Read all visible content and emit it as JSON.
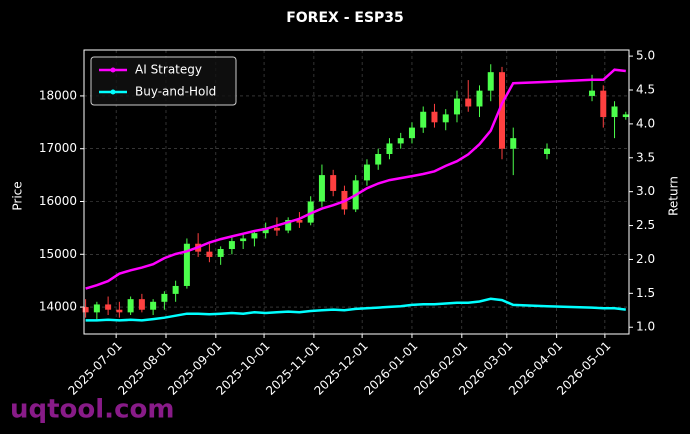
{
  "chart_data": {
    "type": "candlestick",
    "title": "FOREX - ESP35",
    "y_label": "Price",
    "y2_label": "Return",
    "watermark": "uqtool.com",
    "x": [
      "2025-06-12",
      "2025-06-19",
      "2025-06-26",
      "2025-07-03",
      "2025-07-10",
      "2025-07-17",
      "2025-07-24",
      "2025-07-31",
      "2025-08-07",
      "2025-08-14",
      "2025-08-21",
      "2025-08-28",
      "2025-09-04",
      "2025-09-11",
      "2025-09-18",
      "2025-09-25",
      "2025-10-02",
      "2025-10-09",
      "2025-10-16",
      "2025-10-23",
      "2025-10-30",
      "2025-11-06",
      "2025-11-13",
      "2025-11-20",
      "2025-11-27",
      "2025-12-04",
      "2025-12-11",
      "2025-12-18",
      "2025-12-25",
      "2026-01-01",
      "2026-01-08",
      "2026-01-15",
      "2026-01-22",
      "2026-01-29",
      "2026-02-05",
      "2026-02-12",
      "2026-02-19",
      "2026-02-26",
      "2026-03-05",
      "2026-03-26",
      "2026-04-23",
      "2026-04-30",
      "2026-05-07",
      "2026-05-14"
    ],
    "open": [
      14000,
      13900,
      14050,
      13950,
      13900,
      14150,
      13950,
      14100,
      14250,
      14400,
      15200,
      15050,
      14950,
      15100,
      15250,
      15300,
      15400,
      15500,
      15450,
      15650,
      15600,
      16000,
      16500,
      16200,
      15850,
      16400,
      16700,
      16900,
      17100,
      17200,
      17400,
      17700,
      17500,
      17650,
      17950,
      17800,
      18100,
      18450,
      17000,
      16900,
      18000,
      18100,
      17600,
      17600
    ],
    "high": [
      14150,
      14100,
      14200,
      14100,
      14200,
      14250,
      14150,
      14300,
      14500,
      15300,
      15400,
      15200,
      15150,
      15350,
      15400,
      15450,
      15600,
      15700,
      15700,
      15800,
      16100,
      16700,
      16600,
      16300,
      16500,
      16800,
      17000,
      17200,
      17300,
      17500,
      17800,
      17850,
      17750,
      18100,
      18300,
      18200,
      18600,
      18550,
      17400,
      17100,
      18400,
      18200,
      17900,
      17700
    ],
    "low": [
      13800,
      13750,
      13850,
      13800,
      13850,
      13900,
      13850,
      13950,
      14100,
      14350,
      14950,
      14850,
      14800,
      15000,
      15100,
      15150,
      15300,
      15350,
      15400,
      15500,
      15550,
      15900,
      16100,
      15750,
      15800,
      16300,
      16600,
      16800,
      17000,
      17100,
      17300,
      17400,
      17350,
      17500,
      17700,
      17600,
      17900,
      16800,
      16500,
      16800,
      17900,
      17400,
      17200,
      17550
    ],
    "close": [
      13900,
      14050,
      13950,
      13900,
      14150,
      13950,
      14100,
      14250,
      14400,
      15200,
      15050,
      14950,
      15100,
      15250,
      15300,
      15400,
      15500,
      15450,
      15650,
      15600,
      16000,
      16500,
      16200,
      15850,
      16400,
      16700,
      16900,
      17100,
      17200,
      17400,
      17700,
      17500,
      17650,
      17950,
      17800,
      18100,
      18450,
      17000,
      17200,
      17000,
      18100,
      17600,
      17800,
      17650
    ],
    "up_color": "#4cff4c",
    "down_color": "#ff4040",
    "series": [
      {
        "name": "AI Strategy",
        "color": "#ff00ff",
        "axis": "y2",
        "values": [
          1.57,
          1.62,
          1.68,
          1.79,
          1.84,
          1.88,
          1.93,
          2.02,
          2.08,
          2.12,
          2.18,
          2.25,
          2.3,
          2.34,
          2.38,
          2.42,
          2.45,
          2.5,
          2.55,
          2.6,
          2.68,
          2.75,
          2.8,
          2.86,
          2.95,
          3.05,
          3.12,
          3.17,
          3.2,
          3.23,
          3.26,
          3.3,
          3.38,
          3.45,
          3.55,
          3.7,
          3.9,
          4.3,
          4.6,
          4.62,
          4.65,
          4.65,
          4.8,
          4.78
        ]
      },
      {
        "name": "Buy-and-Hold",
        "color": "#00ffff",
        "axis": "y2",
        "values": [
          1.1,
          1.1,
          1.11,
          1.1,
          1.11,
          1.1,
          1.12,
          1.14,
          1.17,
          1.2,
          1.2,
          1.19,
          1.2,
          1.21,
          1.2,
          1.22,
          1.21,
          1.22,
          1.23,
          1.22,
          1.24,
          1.25,
          1.26,
          1.25,
          1.27,
          1.28,
          1.29,
          1.3,
          1.31,
          1.33,
          1.34,
          1.34,
          1.35,
          1.36,
          1.36,
          1.38,
          1.42,
          1.4,
          1.33,
          1.31,
          1.29,
          1.28,
          1.28,
          1.26
        ]
      }
    ],
    "xlim": [
      "2025-06-11",
      "2026-05-16"
    ],
    "xticks": [
      "2025-07-01",
      "2025-08-01",
      "2025-09-01",
      "2025-10-01",
      "2025-11-01",
      "2025-12-01",
      "2026-01-01",
      "2026-02-01",
      "2026-03-01",
      "2026-04-01",
      "2026-05-01"
    ],
    "ylim": [
      13490,
      18870
    ],
    "yticks": [
      14000,
      15000,
      16000,
      17000,
      18000
    ],
    "y2lim": [
      0.9,
      5.09
    ],
    "y2ticks": [
      {
        "value": 1,
        "label": "1.0"
      },
      1.5,
      {
        "value": 2,
        "label": "2.0"
      },
      2.5,
      {
        "value": 3,
        "label": "3.0"
      },
      3.5,
      {
        "value": 4,
        "label": "4.0"
      },
      4.5,
      {
        "value": 5,
        "label": "5.0"
      }
    ],
    "grid": true,
    "legend": "upper left"
  }
}
